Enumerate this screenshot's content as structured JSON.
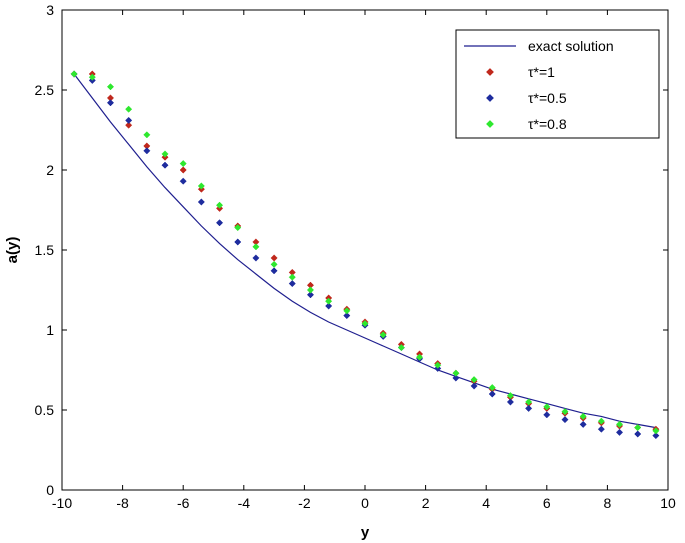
{
  "chart_data": {
    "type": "line",
    "title": "",
    "xlabel": "y",
    "ylabel": "a(y)",
    "xlim": [
      -10,
      10
    ],
    "ylim": [
      0,
      3
    ],
    "x_ticks": [
      -10,
      -8,
      -6,
      -4,
      -2,
      0,
      2,
      4,
      6,
      8,
      10
    ],
    "y_ticks": [
      0,
      0.5,
      1,
      1.5,
      2,
      2.5,
      3
    ],
    "x_tick_labels": [
      "-10",
      "-8",
      "-6",
      "-4",
      "-2",
      "0",
      "2",
      "4",
      "6",
      "8",
      "10"
    ],
    "y_tick_labels": [
      "0",
      "0.5",
      "1",
      "1.5",
      "2",
      "2.5",
      "3"
    ],
    "grid": false,
    "legend_position": "top-right",
    "series": [
      {
        "name": "exact solution",
        "style": "line",
        "color": "#1f1f8f",
        "x": [
          -9.6,
          -9.0,
          -8.4,
          -7.8,
          -7.2,
          -6.6,
          -6.0,
          -5.4,
          -4.8,
          -4.2,
          -3.6,
          -3.0,
          -2.4,
          -1.8,
          -1.2,
          -0.6,
          0.0,
          0.6,
          1.2,
          1.8,
          2.4,
          3.0,
          3.6,
          4.2,
          4.8,
          5.4,
          6.0,
          6.6,
          7.2,
          7.8,
          8.4,
          9.0,
          9.6
        ],
        "y": [
          2.6,
          2.45,
          2.3,
          2.16,
          2.02,
          1.89,
          1.77,
          1.65,
          1.54,
          1.44,
          1.35,
          1.26,
          1.18,
          1.11,
          1.05,
          1.0,
          0.95,
          0.9,
          0.85,
          0.8,
          0.75,
          0.71,
          0.67,
          0.63,
          0.6,
          0.57,
          0.54,
          0.51,
          0.48,
          0.46,
          0.43,
          0.41,
          0.39
        ]
      },
      {
        "name": "τ*=1",
        "style": "markers",
        "color": "#c0281c",
        "x": [
          -9.6,
          -9.0,
          -8.4,
          -7.8,
          -7.2,
          -6.6,
          -6.0,
          -5.4,
          -4.8,
          -4.2,
          -3.6,
          -3.0,
          -2.4,
          -1.8,
          -1.2,
          -0.6,
          0.0,
          0.6,
          1.2,
          1.8,
          2.4,
          3.0,
          3.6,
          4.2,
          4.8,
          5.4,
          6.0,
          6.6,
          7.2,
          7.8,
          8.4,
          9.0,
          9.6
        ],
        "y": [
          2.6,
          2.6,
          2.45,
          2.28,
          2.15,
          2.08,
          2.0,
          1.88,
          1.76,
          1.65,
          1.55,
          1.45,
          1.36,
          1.28,
          1.2,
          1.13,
          1.05,
          0.98,
          0.91,
          0.85,
          0.79,
          0.73,
          0.68,
          0.63,
          0.58,
          0.54,
          0.51,
          0.48,
          0.45,
          0.42,
          0.4,
          0.39,
          0.38
        ]
      },
      {
        "name": "τ*=0.5",
        "style": "markers",
        "color": "#1e2c9e",
        "x": [
          -9.6,
          -9.0,
          -8.4,
          -7.8,
          -7.2,
          -6.6,
          -6.0,
          -5.4,
          -4.8,
          -4.2,
          -3.6,
          -3.0,
          -2.4,
          -1.8,
          -1.2,
          -0.6,
          0.0,
          0.6,
          1.2,
          1.8,
          2.4,
          3.0,
          3.6,
          4.2,
          4.8,
          5.4,
          6.0,
          6.6,
          7.2,
          7.8,
          8.4,
          9.0,
          9.6
        ],
        "y": [
          2.6,
          2.56,
          2.42,
          2.31,
          2.12,
          2.03,
          1.93,
          1.8,
          1.67,
          1.55,
          1.45,
          1.37,
          1.29,
          1.22,
          1.15,
          1.09,
          1.03,
          0.96,
          0.89,
          0.82,
          0.76,
          0.7,
          0.65,
          0.6,
          0.55,
          0.51,
          0.47,
          0.44,
          0.41,
          0.38,
          0.36,
          0.35,
          0.34
        ]
      },
      {
        "name": "τ*=0.8",
        "style": "markers",
        "color": "#2ee82e",
        "x": [
          -9.6,
          -9.0,
          -8.4,
          -7.8,
          -7.2,
          -6.6,
          -6.0,
          -5.4,
          -4.8,
          -4.2,
          -3.6,
          -3.0,
          -2.4,
          -1.8,
          -1.2,
          -0.6,
          0.0,
          0.6,
          1.2,
          1.8,
          2.4,
          3.0,
          3.6,
          4.2,
          4.8,
          5.4,
          6.0,
          6.6,
          7.2,
          7.8,
          8.4,
          9.0,
          9.6
        ],
        "y": [
          2.6,
          2.58,
          2.52,
          2.38,
          2.22,
          2.1,
          2.04,
          1.9,
          1.78,
          1.64,
          1.52,
          1.41,
          1.33,
          1.25,
          1.18,
          1.12,
          1.04,
          0.97,
          0.89,
          0.83,
          0.78,
          0.73,
          0.69,
          0.64,
          0.59,
          0.55,
          0.52,
          0.49,
          0.46,
          0.43,
          0.41,
          0.39,
          0.37
        ]
      }
    ]
  }
}
